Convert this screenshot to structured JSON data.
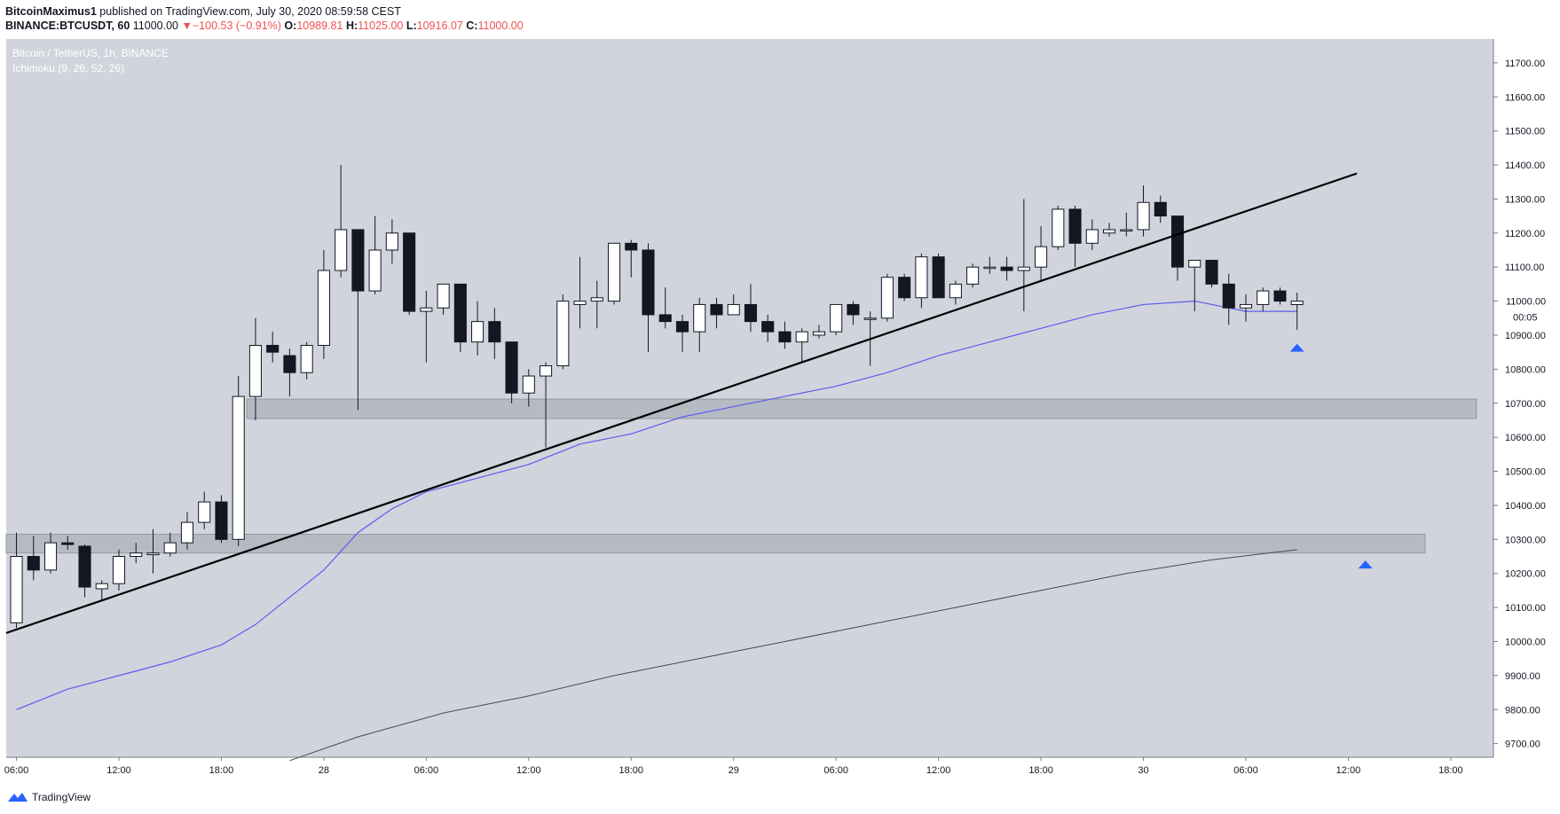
{
  "header": {
    "author": "BitcoinMaximus1",
    "published": "published on TradingView.com, July 30, 2020 08:59:58 CEST",
    "symbol": "BINANCE:BTCUSDT, 60",
    "last": "11000.00",
    "change": "−100.53 (−0.91%)",
    "o_label": "O:",
    "o_value": "10989.81",
    "h_label": "H:",
    "h_value": "11025.00",
    "l_label": "L:",
    "l_value": "10916.07",
    "c_label": "C:",
    "c_value": "11000.00"
  },
  "legend": {
    "title": "Bitcoin / TetherUS, 1h, BINANCE",
    "indicator": "Ichimoku (9, 26, 52, 26)"
  },
  "price_label": {
    "value": "11000.00",
    "countdown": "00:05"
  },
  "footer": {
    "brand": "TradingView"
  },
  "colors": {
    "plot_bg": "#d1d4dc",
    "bull": "#ffffff",
    "bear": "#131722",
    "ma_fast": "#5b5bf0",
    "ma_slow": "#4a4a55",
    "trendline": "#000000",
    "zone": "#b2b5be",
    "arrow": "#2962ff"
  },
  "chart_data": {
    "type": "candlestick",
    "y_axis": {
      "ticks": [
        9700,
        9800,
        9900,
        10000,
        10100,
        10200,
        10300,
        10400,
        10500,
        10600,
        10700,
        10800,
        10900,
        11000,
        11100,
        11200,
        11300,
        11400,
        11500,
        11600,
        11700
      ],
      "tick_labels": [
        "9700.00",
        "9800.00",
        "9900.00",
        "10000.00",
        "10100.00",
        "10200.00",
        "10300.00",
        "10400.00",
        "10500.00",
        "10600.00",
        "10700.00",
        "10800.00",
        "10900.00",
        "11000.00",
        "11100.00",
        "11200.00",
        "11300.00",
        "11400.00",
        "11500.00",
        "11600.00",
        "11700.00"
      ],
      "range": [
        9660,
        11770
      ]
    },
    "x_axis": {
      "labels": [
        "06:00",
        "12:00",
        "18:00",
        "28",
        "06:00",
        "12:00",
        "18:00",
        "29",
        "06:00",
        "12:00",
        "18:00",
        "30",
        "06:00",
        "12:00",
        "18:00"
      ],
      "label_bar_index": [
        0,
        6,
        12,
        18,
        24,
        30,
        36,
        42,
        48,
        54,
        60,
        66,
        72,
        78,
        84
      ],
      "range": [
        -0.6,
        86.5
      ]
    },
    "candles": [
      {
        "o": 10055,
        "h": 10320,
        "l": 10040,
        "c": 10250
      },
      {
        "o": 10250,
        "h": 10310,
        "l": 10180,
        "c": 10210
      },
      {
        "o": 10210,
        "h": 10320,
        "l": 10200,
        "c": 10290
      },
      {
        "o": 10290,
        "h": 10310,
        "l": 10270,
        "c": 10285
      },
      {
        "o": 10280,
        "h": 10285,
        "l": 10130,
        "c": 10160
      },
      {
        "o": 10155,
        "h": 10180,
        "l": 10120,
        "c": 10170
      },
      {
        "o": 10170,
        "h": 10270,
        "l": 10150,
        "c": 10250
      },
      {
        "o": 10250,
        "h": 10290,
        "l": 10230,
        "c": 10260
      },
      {
        "o": 10255,
        "h": 10330,
        "l": 10200,
        "c": 10260
      },
      {
        "o": 10260,
        "h": 10320,
        "l": 10250,
        "c": 10290
      },
      {
        "o": 10290,
        "h": 10380,
        "l": 10270,
        "c": 10350
      },
      {
        "o": 10350,
        "h": 10440,
        "l": 10330,
        "c": 10410
      },
      {
        "o": 10410,
        "h": 10430,
        "l": 10290,
        "c": 10300
      },
      {
        "o": 10300,
        "h": 10780,
        "l": 10280,
        "c": 10720
      },
      {
        "o": 10720,
        "h": 10950,
        "l": 10650,
        "c": 10870
      },
      {
        "o": 10870,
        "h": 10910,
        "l": 10820,
        "c": 10850
      },
      {
        "o": 10840,
        "h": 10860,
        "l": 10720,
        "c": 10790
      },
      {
        "o": 10790,
        "h": 10880,
        "l": 10770,
        "c": 10870
      },
      {
        "o": 10870,
        "h": 11150,
        "l": 10830,
        "c": 11090
      },
      {
        "o": 11090,
        "h": 11400,
        "l": 11070,
        "c": 11210
      },
      {
        "o": 11210,
        "h": 11210,
        "l": 10680,
        "c": 11030
      },
      {
        "o": 11030,
        "h": 11250,
        "l": 11020,
        "c": 11150
      },
      {
        "o": 11150,
        "h": 11240,
        "l": 11110,
        "c": 11200
      },
      {
        "o": 11200,
        "h": 11200,
        "l": 10960,
        "c": 10970
      },
      {
        "o": 10970,
        "h": 11030,
        "l": 10820,
        "c": 10980
      },
      {
        "o": 10980,
        "h": 11050,
        "l": 10960,
        "c": 11050
      },
      {
        "o": 11050,
        "h": 11050,
        "l": 10850,
        "c": 10880
      },
      {
        "o": 10880,
        "h": 11000,
        "l": 10840,
        "c": 10940
      },
      {
        "o": 10940,
        "h": 10980,
        "l": 10830,
        "c": 10880
      },
      {
        "o": 10880,
        "h": 10880,
        "l": 10700,
        "c": 10730
      },
      {
        "o": 10730,
        "h": 10800,
        "l": 10690,
        "c": 10780
      },
      {
        "o": 10780,
        "h": 10820,
        "l": 10570,
        "c": 10810
      },
      {
        "o": 10810,
        "h": 11020,
        "l": 10800,
        "c": 11000
      },
      {
        "o": 10990,
        "h": 11130,
        "l": 10920,
        "c": 11000
      },
      {
        "o": 11000,
        "h": 11060,
        "l": 10920,
        "c": 11010
      },
      {
        "o": 11000,
        "h": 11170,
        "l": 10990,
        "c": 11170
      },
      {
        "o": 11170,
        "h": 11180,
        "l": 11070,
        "c": 11150
      },
      {
        "o": 11150,
        "h": 11170,
        "l": 10850,
        "c": 10960
      },
      {
        "o": 10960,
        "h": 11040,
        "l": 10920,
        "c": 10940
      },
      {
        "o": 10940,
        "h": 10960,
        "l": 10850,
        "c": 10910
      },
      {
        "o": 10910,
        "h": 11010,
        "l": 10850,
        "c": 10990
      },
      {
        "o": 10990,
        "h": 11010,
        "l": 10920,
        "c": 10960
      },
      {
        "o": 10960,
        "h": 11020,
        "l": 10960,
        "c": 10990
      },
      {
        "o": 10990,
        "h": 11050,
        "l": 10910,
        "c": 10940
      },
      {
        "o": 10940,
        "h": 10960,
        "l": 10880,
        "c": 10910
      },
      {
        "o": 10910,
        "h": 10940,
        "l": 10860,
        "c": 10880
      },
      {
        "o": 10880,
        "h": 10920,
        "l": 10820,
        "c": 10910
      },
      {
        "o": 10900,
        "h": 10930,
        "l": 10890,
        "c": 10910
      },
      {
        "o": 10910,
        "h": 10990,
        "l": 10900,
        "c": 10990
      },
      {
        "o": 10990,
        "h": 11000,
        "l": 10930,
        "c": 10960
      },
      {
        "o": 10950,
        "h": 10970,
        "l": 10810,
        "c": 10950
      },
      {
        "o": 10950,
        "h": 11080,
        "l": 10940,
        "c": 11070
      },
      {
        "o": 11070,
        "h": 11080,
        "l": 11000,
        "c": 11010
      },
      {
        "o": 11010,
        "h": 11140,
        "l": 10980,
        "c": 11130
      },
      {
        "o": 11130,
        "h": 11140,
        "l": 11010,
        "c": 11010
      },
      {
        "o": 11010,
        "h": 11060,
        "l": 10990,
        "c": 11050
      },
      {
        "o": 11050,
        "h": 11110,
        "l": 11040,
        "c": 11100
      },
      {
        "o": 11100,
        "h": 11130,
        "l": 11080,
        "c": 11100
      },
      {
        "o": 11100,
        "h": 11130,
        "l": 11060,
        "c": 11090
      },
      {
        "o": 11090,
        "h": 11300,
        "l": 10970,
        "c": 11100
      },
      {
        "o": 11100,
        "h": 11220,
        "l": 11060,
        "c": 11160
      },
      {
        "o": 11160,
        "h": 11280,
        "l": 11150,
        "c": 11270
      },
      {
        "o": 11270,
        "h": 11280,
        "l": 11100,
        "c": 11170
      },
      {
        "o": 11170,
        "h": 11240,
        "l": 11150,
        "c": 11210
      },
      {
        "o": 11200,
        "h": 11230,
        "l": 11190,
        "c": 11210
      },
      {
        "o": 11210,
        "h": 11260,
        "l": 11190,
        "c": 11210
      },
      {
        "o": 11210,
        "h": 11340,
        "l": 11190,
        "c": 11290
      },
      {
        "o": 11290,
        "h": 11310,
        "l": 11230,
        "c": 11250
      },
      {
        "o": 11250,
        "h": 11250,
        "l": 11060,
        "c": 11100
      },
      {
        "o": 11100,
        "h": 11120,
        "l": 10970,
        "c": 11120
      },
      {
        "o": 11120,
        "h": 11120,
        "l": 11040,
        "c": 11050
      },
      {
        "o": 11050,
        "h": 11080,
        "l": 10930,
        "c": 10980
      },
      {
        "o": 10980,
        "h": 11020,
        "l": 10940,
        "c": 10990
      },
      {
        "o": 10990,
        "h": 11040,
        "l": 10970,
        "c": 11030
      },
      {
        "o": 11030,
        "h": 11040,
        "l": 10990,
        "c": 11000
      },
      {
        "o": 10989.81,
        "h": 11025,
        "l": 10916.07,
        "c": 11000
      }
    ],
    "ma_fast": {
      "x": [
        0,
        3,
        6,
        9,
        12,
        14,
        16,
        18,
        20,
        22,
        24,
        27,
        30,
        33,
        36,
        39,
        42,
        45,
        48,
        51,
        54,
        57,
        60,
        63,
        66,
        69,
        72,
        75
      ],
      "y": [
        9800,
        9860,
        9900,
        9940,
        9990,
        10050,
        10130,
        10210,
        10320,
        10390,
        10440,
        10480,
        10520,
        10580,
        10610,
        10660,
        10690,
        10720,
        10750,
        10790,
        10840,
        10880,
        10920,
        10960,
        10990,
        11000,
        10970,
        10970
      ]
    },
    "ma_slow": {
      "x": [
        16,
        20,
        25,
        30,
        35,
        40,
        45,
        50,
        55,
        60,
        65,
        70,
        75
      ],
      "y": [
        9650,
        9720,
        9790,
        9840,
        9900,
        9950,
        10000,
        10050,
        10100,
        10150,
        10200,
        10240,
        10270
      ]
    },
    "trendline": {
      "x": [
        -0.6,
        78.5
      ],
      "y": [
        10025,
        11375
      ]
    },
    "zones": [
      {
        "x": [
          13.5,
          85.5
        ],
        "y": [
          10655,
          10712
        ]
      },
      {
        "x": [
          -0.6,
          82.5
        ],
        "y": [
          10260,
          10315
        ]
      }
    ],
    "arrows": [
      {
        "x": 75.0,
        "y": 10862
      },
      {
        "x": 79.0,
        "y": 10225
      }
    ],
    "last_price": 11000
  }
}
